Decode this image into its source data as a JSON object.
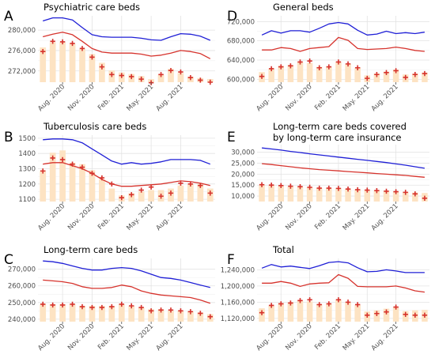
{
  "colors": {
    "bar": "#fde3c3",
    "upper_line": "#1f1fd6",
    "lower_line": "#d6332d",
    "marker": "#d6332d",
    "grid_major": "#e3e3e3",
    "grid_minor": "#f1f1f1"
  },
  "chart_data": [
    {
      "id": "A",
      "letter": "A",
      "type": "bar",
      "title": [
        "Psychiatric care beds"
      ],
      "x_tick_labels": [
        "Aug. 2020",
        "Nov. 2020",
        "Feb. 2021",
        "May. 2021",
        "Aug. 2021"
      ],
      "x_tick_index": [
        2,
        5,
        8,
        11,
        14
      ],
      "n": 18,
      "ylim": [
        269800,
        282800
      ],
      "y_ticks": [
        272000,
        276000,
        280000
      ],
      "y_tick_labels": [
        "272,000",
        "276,000",
        "280,000"
      ],
      "bars": [
        276600,
        277600,
        277600,
        277300,
        276300,
        275300,
        273600,
        272100,
        271700,
        271400,
        271000,
        270400,
        271300,
        272400,
        271600,
        270900,
        270600,
        270400
      ],
      "markers": [
        275800,
        277800,
        277700,
        277400,
        276400,
        274700,
        272800,
        271300,
        271100,
        270900,
        270400,
        269700,
        271300,
        272100,
        271800,
        270700,
        270200,
        269800
      ],
      "upper_line": [
        281800,
        282400,
        282400,
        282000,
        280500,
        279100,
        278700,
        278600,
        278600,
        278600,
        278400,
        278100,
        278000,
        278700,
        279300,
        279200,
        278800,
        278000
      ],
      "lower_line": [
        278700,
        279200,
        279600,
        279100,
        277800,
        276400,
        275700,
        275500,
        275500,
        275500,
        275300,
        274900,
        275100,
        275500,
        276000,
        275800,
        275400,
        274400
      ]
    },
    {
      "id": "B",
      "letter": "B",
      "type": "bar",
      "title": [
        "Tuberculosis care beds"
      ],
      "x_tick_labels": [
        "Aug. 2020",
        "Nov. 2020",
        "Feb. 2021",
        "May. 2021",
        "Aug. 2021"
      ],
      "x_tick_index": [
        2,
        5,
        8,
        11,
        14
      ],
      "n": 18,
      "ylim": [
        1085,
        1520
      ],
      "y_ticks": [
        1100,
        1200,
        1300,
        1400,
        1500
      ],
      "y_tick_labels": [
        "1100",
        "1200",
        "1300",
        "1400",
        "1500"
      ],
      "bars": [
        1290,
        1405,
        1420,
        1340,
        1330,
        1290,
        1230,
        1170,
        1125,
        1140,
        1150,
        1160,
        1160,
        1170,
        1190,
        1200,
        1200,
        1170
      ],
      "markers": [
        1285,
        1370,
        1360,
        1330,
        1310,
        1270,
        1240,
        1200,
        1110,
        1130,
        1160,
        1180,
        1120,
        1140,
        1205,
        1200,
        1190,
        1140
      ],
      "upper_line": [
        1490,
        1495,
        1495,
        1490,
        1470,
        1430,
        1390,
        1350,
        1330,
        1340,
        1330,
        1335,
        1345,
        1360,
        1360,
        1360,
        1355,
        1330
      ],
      "lower_line": [
        1330,
        1340,
        1340,
        1320,
        1300,
        1270,
        1230,
        1200,
        1185,
        1185,
        1190,
        1195,
        1200,
        1210,
        1220,
        1215,
        1205,
        1190
      ]
    },
    {
      "id": "C",
      "letter": "C",
      "type": "bar",
      "title": [
        "Long-term care beds"
      ],
      "x_tick_labels": [
        "Aug. 2020",
        "Nov. 2020",
        "Feb. 2021",
        "May. 2021",
        "Aug. 2021"
      ],
      "x_tick_index": [
        2,
        5,
        8,
        11,
        14
      ],
      "n": 18,
      "ylim": [
        238500,
        276500
      ],
      "y_ticks": [
        240000,
        250000,
        260000,
        270000
      ],
      "y_tick_labels": [
        "240,000",
        "250,000",
        "260,000",
        "270,000"
      ],
      "bars": [
        249000,
        249000,
        249000,
        249000,
        248000,
        248000,
        248000,
        248000,
        249000,
        248000,
        247000,
        246000,
        246000,
        245000,
        245000,
        244500,
        244000,
        243000
      ],
      "markers": [
        249000,
        248500,
        248500,
        249000,
        247500,
        247000,
        247000,
        247500,
        249000,
        248000,
        247000,
        245000,
        245500,
        245500,
        245000,
        244500,
        243500,
        241500
      ],
      "upper_line": [
        275000,
        274500,
        273500,
        272000,
        270500,
        269500,
        269500,
        270500,
        271000,
        270500,
        269000,
        267000,
        265000,
        264500,
        263500,
        262000,
        260500,
        259000
      ],
      "lower_line": [
        263500,
        263000,
        262500,
        261500,
        259500,
        258500,
        258500,
        259000,
        260500,
        259500,
        257000,
        255500,
        254500,
        254000,
        253500,
        253000,
        251500,
        249500
      ]
    },
    {
      "id": "D",
      "letter": "D",
      "type": "bar",
      "title": [
        "General beds"
      ],
      "x_tick_labels": [
        "Aug. 2020",
        "Nov. 2020",
        "Feb. 2021",
        "May. 2021",
        "Aug. 2021"
      ],
      "x_tick_index": [
        2,
        5,
        8,
        11,
        14
      ],
      "n": 18,
      "ylim": [
        594000,
        732000
      ],
      "y_ticks": [
        600000,
        640000,
        680000,
        720000
      ],
      "y_tick_labels": [
        "600,000",
        "640,000",
        "680,000",
        "720,000"
      ],
      "bars": [
        615000,
        622000,
        628000,
        630000,
        636000,
        634000,
        626000,
        626000,
        636000,
        632000,
        624000,
        608000,
        612000,
        616000,
        620000,
        610000,
        612000,
        614000
      ],
      "markers": [
        606000,
        622000,
        626000,
        628000,
        636000,
        638000,
        624000,
        626000,
        636000,
        632000,
        624000,
        602000,
        610000,
        614000,
        618000,
        604000,
        610000,
        612000
      ],
      "upper_line": [
        692000,
        701000,
        696000,
        701000,
        701000,
        698000,
        706000,
        715000,
        718000,
        715000,
        702000,
        692000,
        694000,
        700000,
        695000,
        697000,
        695000,
        698000
      ],
      "lower_line": [
        661000,
        661000,
        666000,
        664000,
        658000,
        664000,
        666000,
        668000,
        687000,
        681000,
        664000,
        662000,
        663000,
        664000,
        667000,
        664000,
        660000,
        658000
      ]
    },
    {
      "id": "E",
      "letter": "E",
      "type": "bar",
      "title": [
        "Long-term care beds covered",
        "by long-term care insurance"
      ],
      "x_tick_labels": [
        "Aug. 2020",
        "Nov. 2020",
        "Feb. 2021",
        "May. 2021",
        "Aug. 2021"
      ],
      "x_tick_index": [
        2,
        5,
        8,
        11,
        14
      ],
      "n": 18,
      "ylim": [
        7500,
        33500
      ],
      "y_ticks": [
        10000,
        15000,
        20000,
        25000,
        30000
      ],
      "y_tick_labels": [
        "10,000",
        "15,000",
        "20,000",
        "25,000",
        "30,000"
      ],
      "bars": [
        15000,
        15000,
        14600,
        14400,
        14200,
        14000,
        13800,
        13600,
        13500,
        13300,
        13100,
        12900,
        12700,
        12400,
        12100,
        11900,
        11600,
        11400
      ],
      "markers": [
        15200,
        15000,
        14800,
        14500,
        14300,
        14000,
        13600,
        13600,
        13500,
        13200,
        12900,
        12700,
        12500,
        12200,
        12000,
        11700,
        11000,
        9000
      ],
      "upper_line": [
        32000,
        31500,
        31000,
        30400,
        29900,
        29300,
        28800,
        28300,
        27800,
        27300,
        26800,
        26300,
        25800,
        25300,
        24700,
        24100,
        23400,
        22700
      ],
      "lower_line": [
        24800,
        24400,
        23900,
        23400,
        22900,
        22500,
        22100,
        21800,
        21500,
        21200,
        20900,
        20600,
        20300,
        20000,
        19700,
        19400,
        19000,
        18600
      ]
    },
    {
      "id": "F",
      "letter": "F",
      "type": "bar",
      "title": [
        "Total"
      ],
      "x_tick_labels": [
        "Aug. 2020",
        "Nov. 2020",
        "Feb. 2021",
        "May. 2021",
        "Aug. 2021"
      ],
      "x_tick_index": [
        2,
        5,
        8,
        11,
        14
      ],
      "n": 18,
      "ylim": [
        1112000,
        1268000
      ],
      "y_ticks": [
        1120000,
        1160000,
        1200000,
        1240000
      ],
      "y_tick_labels": [
        "1,120,000",
        "1,160,000",
        "1,200,000",
        "1,240,000"
      ],
      "bars": [
        1145000,
        1152000,
        1158000,
        1160000,
        1164000,
        1162000,
        1155000,
        1156000,
        1165000,
        1160000,
        1153000,
        1137000,
        1140000,
        1144000,
        1148000,
        1138000,
        1140000,
        1141000
      ],
      "markers": [
        1134000,
        1152000,
        1156000,
        1158000,
        1164000,
        1166000,
        1154000,
        1156000,
        1166000,
        1160000,
        1154000,
        1128000,
        1132000,
        1136000,
        1148000,
        1130000,
        1128000,
        1128000
      ],
      "upper_line": [
        1244000,
        1253000,
        1247000,
        1249000,
        1246000,
        1243000,
        1250000,
        1258000,
        1260000,
        1257000,
        1245000,
        1235000,
        1236000,
        1240000,
        1237000,
        1233000,
        1233000,
        1233000
      ],
      "lower_line": [
        1207000,
        1207000,
        1211000,
        1207000,
        1199000,
        1205000,
        1207000,
        1208000,
        1228000,
        1219000,
        1199000,
        1198000,
        1198000,
        1198000,
        1200000,
        1195000,
        1188000,
        1185000
      ]
    }
  ]
}
